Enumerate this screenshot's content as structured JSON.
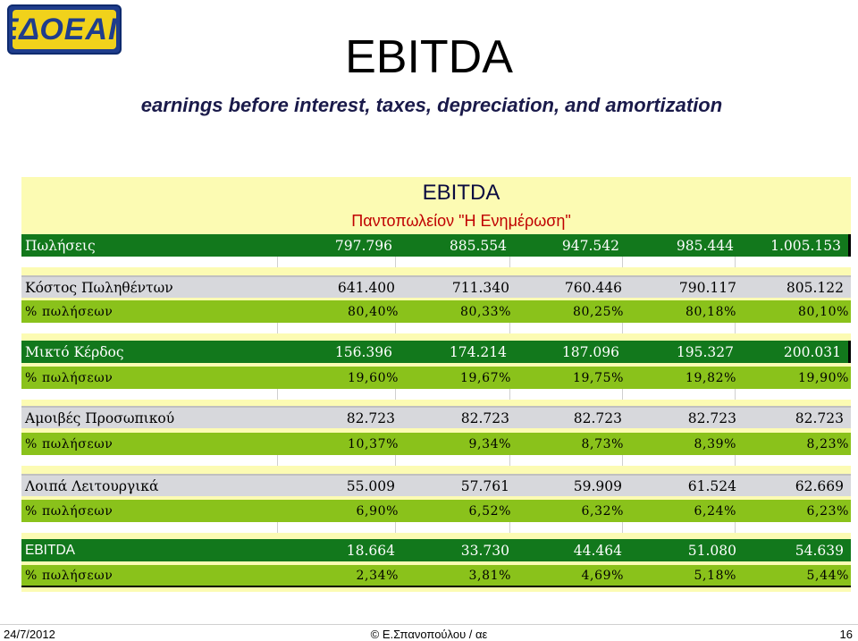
{
  "logo_text": "ΕΔΟΕΑΠ",
  "title": "EBITDA",
  "subtitle": "earnings before interest, taxes, depreciation, and amortization",
  "sheet": {
    "title": "EBITDA",
    "subtitle": "Παντοπωλείον \"Η Ενημέρωση\"",
    "rows": [
      {
        "label": "Πωλήσεις",
        "values": [
          "797.796",
          "885.554",
          "947.542",
          "985.444",
          "1.005.153"
        ]
      },
      {
        "label": "Κόστος Πωληθέντων",
        "values": [
          "641.400",
          "711.340",
          "760.446",
          "790.117",
          "805.122"
        ]
      },
      {
        "label": "% πωλήσεων",
        "values": [
          "80,40%",
          "80,33%",
          "80,25%",
          "80,18%",
          "80,10%"
        ]
      },
      {
        "label": "Μικτό Κέρδος",
        "values": [
          "156.396",
          "174.214",
          "187.096",
          "195.327",
          "200.031"
        ]
      },
      {
        "label": "% πωλήσεων",
        "values": [
          "19,60%",
          "19,67%",
          "19,75%",
          "19,82%",
          "19,90%"
        ]
      },
      {
        "label": "Αμοιβές Προσωπικού",
        "values": [
          "82.723",
          "82.723",
          "82.723",
          "82.723",
          "82.723"
        ]
      },
      {
        "label": "% πωλήσεων",
        "values": [
          "10,37%",
          "9,34%",
          "8,73%",
          "8,39%",
          "8,23%"
        ]
      },
      {
        "label": "Λοιπά Λειτουργικά",
        "values": [
          "55.009",
          "57.761",
          "59.909",
          "61.524",
          "62.669"
        ]
      },
      {
        "label": "% πωλήσεων",
        "values": [
          "6,90%",
          "6,52%",
          "6,32%",
          "6,24%",
          "6,23%"
        ]
      },
      {
        "label": "EBITDA",
        "values": [
          "18.664",
          "33.730",
          "44.464",
          "51.080",
          "54.639"
        ]
      },
      {
        "label": "% πωλήσεων",
        "values": [
          "2,34%",
          "3,81%",
          "4,69%",
          "5,18%",
          "5,44%"
        ]
      }
    ]
  },
  "footer": {
    "date": "24/7/2012",
    "author": "© Ε.Σπανοπούλου / αε",
    "page": "16"
  },
  "colors": {
    "sheet_background": "#fcfbb3",
    "dark_green": "#12781c",
    "lime_green": "#8ac21b",
    "light_gray": "#d7d8dc",
    "sheet_subtitle": "#c00000"
  }
}
